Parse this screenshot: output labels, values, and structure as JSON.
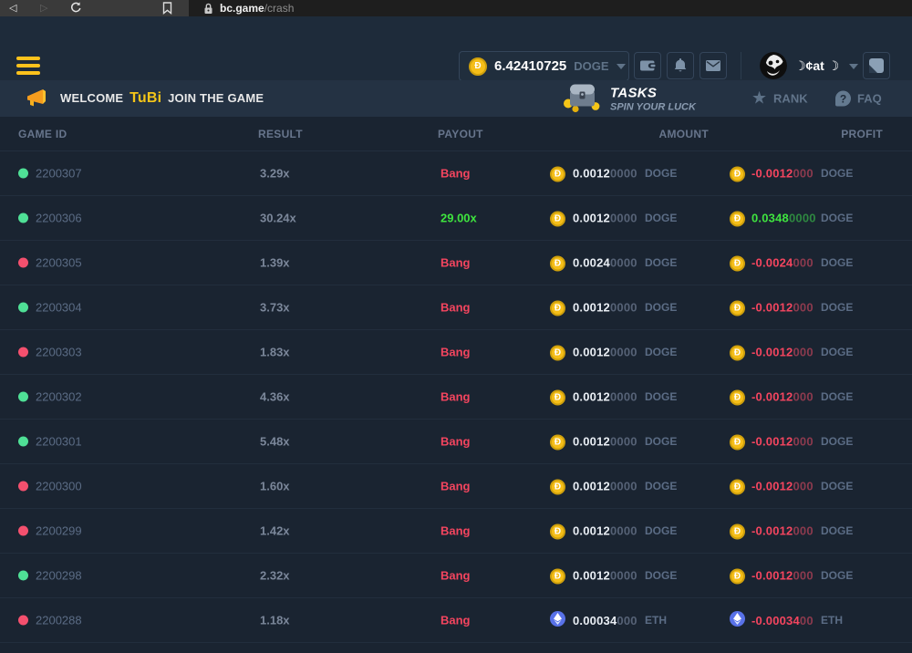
{
  "browser": {
    "url_host": "bc.game",
    "url_path": "/crash"
  },
  "header": {
    "balance_value": "6.42410725",
    "balance_currency": "DOGE",
    "coin_letter": "Đ",
    "username": "☽¢at ☽"
  },
  "banner": {
    "welcome_prefix": "WELCOME",
    "welcome_user": "TuBi",
    "welcome_suffix": "JOIN THE GAME",
    "tasks_title": "TASKS",
    "tasks_subtitle": "SPIN YOUR LUCK",
    "rank_label": "RANK",
    "faq_label": "FAQ",
    "faq_mark": "?"
  },
  "table": {
    "headers": {
      "game_id": "GAME ID",
      "result": "RESULT",
      "payout": "PAYOUT",
      "amount": "AMOUNT",
      "profit": "PROFIT"
    },
    "rows": [
      {
        "id": "2200307",
        "dot": "green",
        "result": "3.29x",
        "payout": "Bang",
        "payout_win": false,
        "coin": "doge",
        "amount_main": "0.0012",
        "amount_dim": "0000",
        "amount_unit": "DOGE",
        "profit_main": "-0.0012",
        "profit_dim": "000",
        "profit_unit": "DOGE",
        "profit_positive": false
      },
      {
        "id": "2200306",
        "dot": "green",
        "result": "30.24x",
        "payout": "29.00x",
        "payout_win": true,
        "coin": "doge",
        "amount_main": "0.0012",
        "amount_dim": "0000",
        "amount_unit": "DOGE",
        "profit_main": "0.0348",
        "profit_dim": "0000",
        "profit_unit": "DOGE",
        "profit_positive": true
      },
      {
        "id": "2200305",
        "dot": "red",
        "result": "1.39x",
        "payout": "Bang",
        "payout_win": false,
        "coin": "doge",
        "amount_main": "0.0024",
        "amount_dim": "0000",
        "amount_unit": "DOGE",
        "profit_main": "-0.0024",
        "profit_dim": "000",
        "profit_unit": "DOGE",
        "profit_positive": false
      },
      {
        "id": "2200304",
        "dot": "green",
        "result": "3.73x",
        "payout": "Bang",
        "payout_win": false,
        "coin": "doge",
        "amount_main": "0.0012",
        "amount_dim": "0000",
        "amount_unit": "DOGE",
        "profit_main": "-0.0012",
        "profit_dim": "000",
        "profit_unit": "DOGE",
        "profit_positive": false
      },
      {
        "id": "2200303",
        "dot": "red",
        "result": "1.83x",
        "payout": "Bang",
        "payout_win": false,
        "coin": "doge",
        "amount_main": "0.0012",
        "amount_dim": "0000",
        "amount_unit": "DOGE",
        "profit_main": "-0.0012",
        "profit_dim": "000",
        "profit_unit": "DOGE",
        "profit_positive": false
      },
      {
        "id": "2200302",
        "dot": "green",
        "result": "4.36x",
        "payout": "Bang",
        "payout_win": false,
        "coin": "doge",
        "amount_main": "0.0012",
        "amount_dim": "0000",
        "amount_unit": "DOGE",
        "profit_main": "-0.0012",
        "profit_dim": "000",
        "profit_unit": "DOGE",
        "profit_positive": false
      },
      {
        "id": "2200301",
        "dot": "green",
        "result": "5.48x",
        "payout": "Bang",
        "payout_win": false,
        "coin": "doge",
        "amount_main": "0.0012",
        "amount_dim": "0000",
        "amount_unit": "DOGE",
        "profit_main": "-0.0012",
        "profit_dim": "000",
        "profit_unit": "DOGE",
        "profit_positive": false
      },
      {
        "id": "2200300",
        "dot": "red",
        "result": "1.60x",
        "payout": "Bang",
        "payout_win": false,
        "coin": "doge",
        "amount_main": "0.0012",
        "amount_dim": "0000",
        "amount_unit": "DOGE",
        "profit_main": "-0.0012",
        "profit_dim": "000",
        "profit_unit": "DOGE",
        "profit_positive": false
      },
      {
        "id": "2200299",
        "dot": "red",
        "result": "1.42x",
        "payout": "Bang",
        "payout_win": false,
        "coin": "doge",
        "amount_main": "0.0012",
        "amount_dim": "0000",
        "amount_unit": "DOGE",
        "profit_main": "-0.0012",
        "profit_dim": "000",
        "profit_unit": "DOGE",
        "profit_positive": false
      },
      {
        "id": "2200298",
        "dot": "green",
        "result": "2.32x",
        "payout": "Bang",
        "payout_win": false,
        "coin": "doge",
        "amount_main": "0.0012",
        "amount_dim": "0000",
        "amount_unit": "DOGE",
        "profit_main": "-0.0012",
        "profit_dim": "000",
        "profit_unit": "DOGE",
        "profit_positive": false
      },
      {
        "id": "2200288",
        "dot": "red",
        "result": "1.18x",
        "payout": "Bang",
        "payout_win": false,
        "coin": "eth",
        "amount_main": "0.00034",
        "amount_dim": "000",
        "amount_unit": "ETH",
        "profit_main": "-0.00034",
        "profit_dim": "00",
        "profit_unit": "ETH",
        "profit_positive": false
      }
    ]
  },
  "colors": {
    "accent_yellow": "#f5c518",
    "win_green": "#3fe43f",
    "bang_red": "#f4455f",
    "dot_green": "#4fe096",
    "dot_red": "#f4506e",
    "header_bg": "#1e2b3a",
    "banner_bg": "#243243",
    "page_bg": "#1a2431",
    "eth_blue": "#5871e8"
  }
}
